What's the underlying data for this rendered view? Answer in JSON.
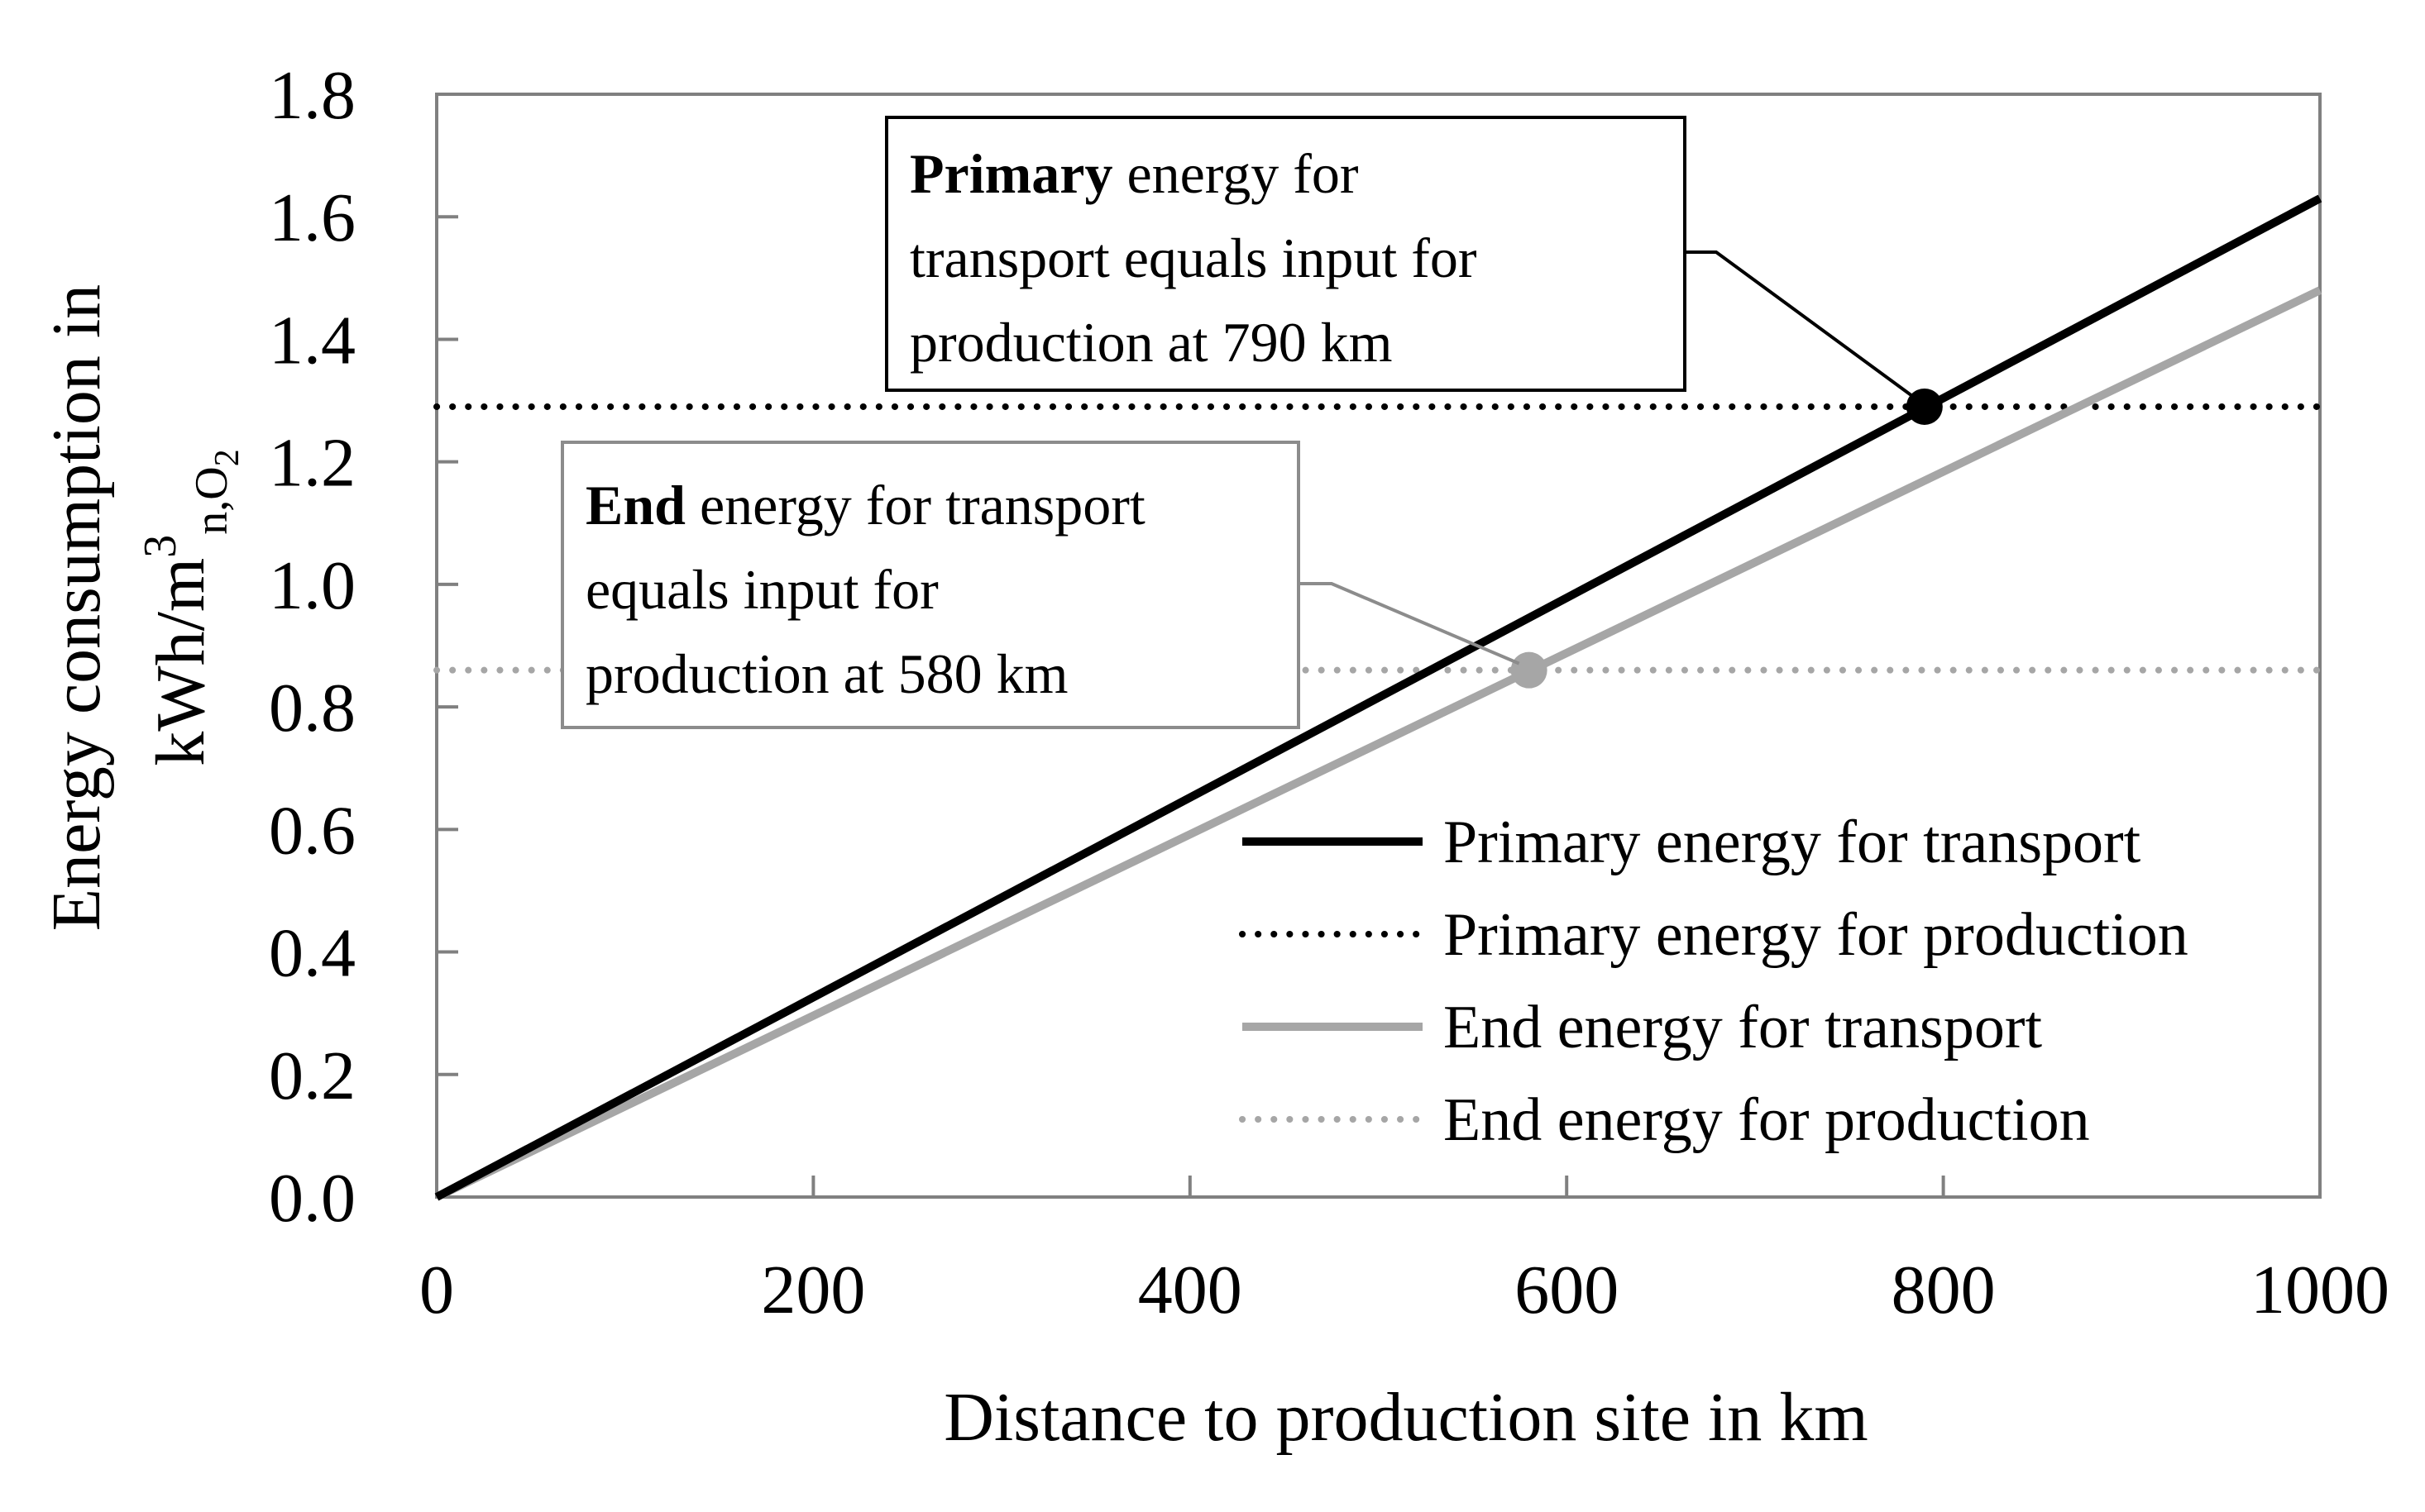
{
  "chart_data": {
    "type": "line",
    "xlabel": "Distance to production site in km",
    "ylabel": {
      "line1": "Energy consumption in",
      "line2_main": "kWh/m",
      "line2_sup": "3",
      "line2_sub": "n,O",
      "line2_subsub": "2"
    },
    "xlim": [
      0,
      1000
    ],
    "ylim": [
      0,
      1.8
    ],
    "x_ticks": [
      "0",
      "200",
      "400",
      "600",
      "800",
      "1000"
    ],
    "y_ticks": [
      "0.0",
      "0.2",
      "0.4",
      "0.6",
      "0.8",
      "1.0",
      "1.2",
      "1.4",
      "1.6",
      "1.8"
    ],
    "grid": false,
    "legend_position": "lower-right",
    "series": [
      {
        "name": "Primary energy for transport",
        "style": "solid",
        "color": "#000000",
        "x": [
          0,
          1000
        ],
        "y": [
          0,
          1.63
        ]
      },
      {
        "name": "Primary energy for production",
        "style": "dotted",
        "color": "#000000",
        "x": [
          0,
          1000
        ],
        "y": [
          1.29,
          1.29
        ]
      },
      {
        "name": "End energy for transport",
        "style": "solid",
        "color": "#a6a6a6",
        "x": [
          0,
          1000
        ],
        "y": [
          0,
          1.48
        ]
      },
      {
        "name": "End energy for production",
        "style": "dotted",
        "color": "#a6a6a6",
        "x": [
          0,
          1000
        ],
        "y": [
          0.86,
          0.86
        ]
      }
    ],
    "points": [
      {
        "x": 790,
        "y": 1.29,
        "color": "#000000"
      },
      {
        "x": 580,
        "y": 0.86,
        "color": "#a6a6a6"
      }
    ],
    "annotations": [
      {
        "bold": "Primary",
        "lines": [
          " energy for",
          "transport equals input for",
          "production at 790 km"
        ],
        "border": "#000000"
      },
      {
        "bold": "End",
        "lines": [
          " energy for transport",
          "equals input for",
          "production at 580 km"
        ],
        "border": "#8c8c8c"
      }
    ]
  }
}
